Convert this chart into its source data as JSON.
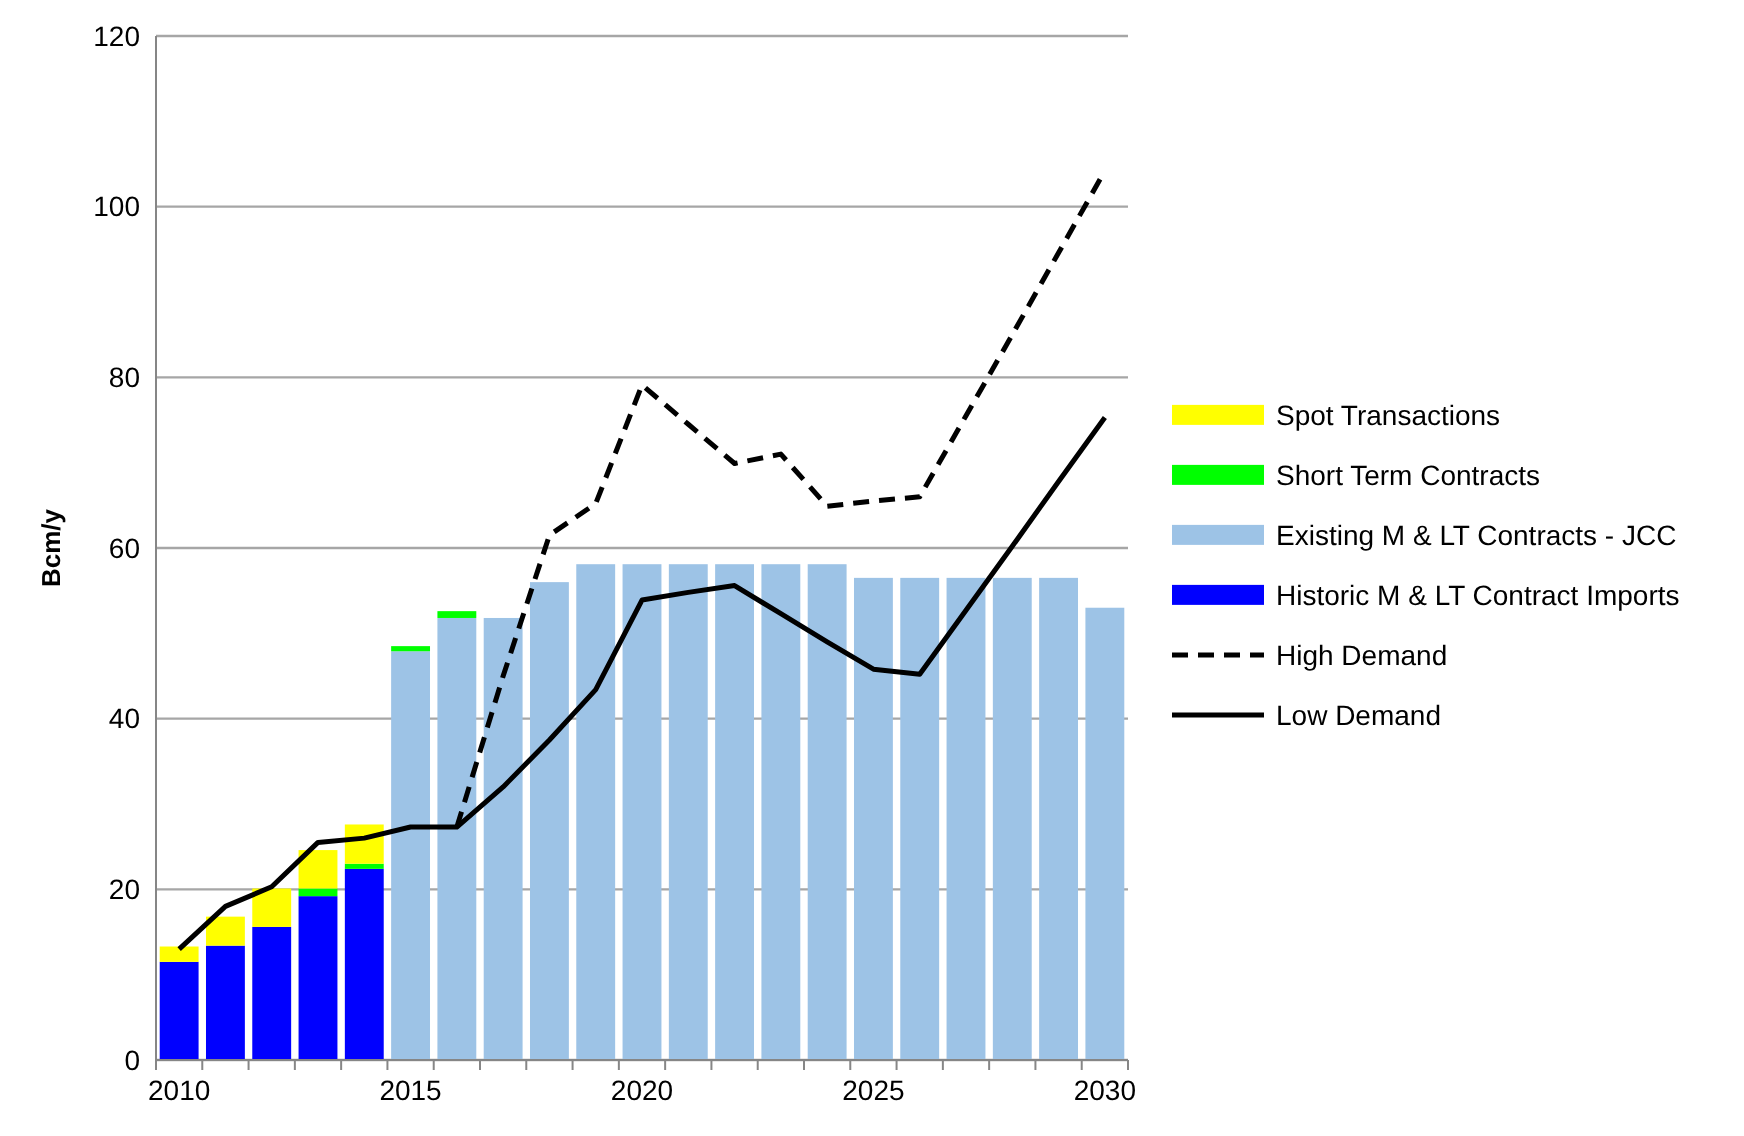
{
  "chart_data": {
    "type": "bar",
    "stacked": true,
    "ylabel": "Bcm/y",
    "categories": [
      "2010",
      null,
      null,
      null,
      null,
      "2015",
      null,
      null,
      null,
      null,
      "2020",
      null,
      null,
      null,
      null,
      "2025",
      null,
      null,
      null,
      null,
      "2030"
    ],
    "series": [
      {
        "name": "Historic M & LT Contract Imports",
        "color": "#0000ff",
        "values": [
          11.5,
          13.4,
          15.6,
          19.2,
          22.4,
          null,
          null,
          null,
          null,
          null,
          null,
          null,
          null,
          null,
          null,
          null,
          null,
          null,
          null,
          null,
          null
        ]
      },
      {
        "name": "Existing M & LT Contracts - JCC",
        "color": "#9dc3e6",
        "values": [
          null,
          null,
          null,
          null,
          null,
          47.9,
          51.8,
          51.8,
          56.0,
          58.1,
          58.1,
          58.1,
          58.1,
          58.1,
          58.1,
          56.5,
          56.5,
          56.5,
          56.5,
          56.5,
          53.0
        ]
      },
      {
        "name": "Short Term Contracts",
        "color": "#00ff00",
        "values": [
          null,
          null,
          null,
          0.9,
          0.6,
          0.6,
          0.8,
          null,
          null,
          null,
          null,
          null,
          null,
          null,
          null,
          null,
          null,
          null,
          null,
          null,
          null
        ]
      },
      {
        "name": "Spot Transactions",
        "color": "#ffff00",
        "values": [
          1.8,
          3.4,
          4.5,
          4.5,
          4.6,
          null,
          null,
          null,
          null,
          null,
          null,
          null,
          null,
          null,
          null,
          null,
          null,
          null,
          null,
          null,
          null
        ]
      },
      {
        "name": "High Demand",
        "type": "line",
        "line_style": "dashed",
        "color": "#000000",
        "values": [
          null,
          null,
          null,
          null,
          null,
          null,
          27.3,
          45,
          61.5,
          65.2,
          79.1,
          74.5,
          69.9,
          71.0,
          64.9,
          65.5,
          66.0,
          75.5,
          85.0,
          94.6,
          104.2
        ]
      },
      {
        "name": "Low Demand",
        "type": "line",
        "line_style": "solid",
        "color": "#000000",
        "values": [
          13.0,
          18.0,
          20.3,
          25.5,
          26.0,
          27.3,
          27.3,
          32,
          37.5,
          43.4,
          53.9,
          54.8,
          55.6,
          52.3,
          49.0,
          45.8,
          45.2,
          52.7,
          60.2,
          67.8,
          75.3
        ]
      }
    ],
    "ylim": [
      0,
      120
    ],
    "yticks": [
      0,
      20,
      40,
      60,
      80,
      100,
      120
    ],
    "grid": "y",
    "legend": "right"
  }
}
